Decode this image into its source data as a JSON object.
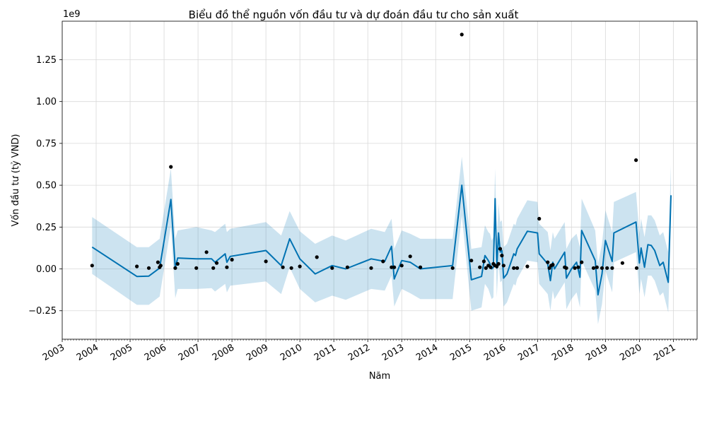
{
  "chart_data": {
    "type": "line",
    "title": "Biểu đồ thể nguồn vốn đầu tư và dự đoán đầu tư cho sản xuất",
    "xlabel": "Năm",
    "ylabel": "Vốn đầu tư (tỷ VND)",
    "offset_label": "1e9",
    "grid": true,
    "xlim": [
      2003.0,
      2021.7
    ],
    "ylim": [
      -0.42,
      1.48
    ],
    "x_ticks": [
      2003,
      2004,
      2005,
      2006,
      2007,
      2008,
      2009,
      2010,
      2011,
      2012,
      2013,
      2014,
      2015,
      2016,
      2017,
      2018,
      2019,
      2020,
      2021
    ],
    "x_tick_labels": [
      "2003",
      "2004",
      "2005",
      "2006",
      "2007",
      "2008",
      "2009",
      "2010",
      "2011",
      "2012",
      "2013",
      "2014",
      "2015",
      "2016",
      "2017",
      "2018",
      "2019",
      "2020",
      "2021"
    ],
    "y_ticks": [
      -0.25,
      0.0,
      0.25,
      0.5,
      0.75,
      1.0,
      1.25
    ],
    "y_tick_labels": [
      "−0.25",
      "0.00",
      "0.25",
      "0.50",
      "0.75",
      "1.00",
      "1.25"
    ],
    "colors": {
      "forecast": "#0072B2",
      "band": "#0072B2",
      "observed": "#000000",
      "grid": "#d9d9d9"
    },
    "series": [
      {
        "kind": "forecast",
        "x": [
          2003.88,
          2005.2,
          2005.55,
          2005.87,
          2006.2,
          2006.33,
          2006.4,
          2006.95,
          2007.4,
          2007.5,
          2007.8,
          2007.85,
          2007.95,
          2009.0,
          2009.45,
          2009.7,
          2010.0,
          2010.45,
          2010.95,
          2011.35,
          2012.1,
          2012.5,
          2012.7,
          2012.78,
          2013.0,
          2013.25,
          2013.55,
          2014.5,
          2014.77,
          2015.05,
          2015.35,
          2015.45,
          2015.55,
          2015.6,
          2015.65,
          2015.7,
          2015.75,
          2015.8,
          2015.85,
          2015.9,
          2015.95,
          2016.0,
          2016.1,
          2016.3,
          2016.35,
          2016.4,
          2016.7,
          2017.0,
          2017.05,
          2017.3,
          2017.38,
          2017.45,
          2017.5,
          2017.8,
          2017.85,
          2018.0,
          2018.15,
          2018.25,
          2018.3,
          2018.7,
          2018.78,
          2018.9,
          2019.0,
          2019.2,
          2019.25,
          2019.9,
          2020.0,
          2020.05,
          2020.15,
          2020.25,
          2020.35,
          2020.45,
          2020.6,
          2020.7,
          2020.85,
          2020.93
        ],
        "y": [
          0.13,
          -0.045,
          -0.043,
          0.005,
          0.415,
          0.005,
          0.065,
          0.06,
          0.06,
          0.04,
          0.09,
          0.04,
          0.075,
          0.11,
          0.02,
          0.18,
          0.06,
          -0.03,
          0.02,
          0.0,
          0.06,
          0.045,
          0.135,
          -0.06,
          0.05,
          0.04,
          0.0,
          0.02,
          0.5,
          -0.065,
          -0.045,
          0.08,
          0.05,
          0.03,
          0.0,
          0.01,
          0.42,
          0.005,
          0.215,
          0.1,
          0.11,
          -0.055,
          -0.03,
          0.09,
          0.08,
          0.12,
          0.225,
          0.215,
          0.09,
          0.03,
          -0.07,
          0.04,
          0.0,
          0.1,
          -0.055,
          0.0,
          0.04,
          -0.05,
          0.23,
          0.05,
          -0.155,
          -0.03,
          0.17,
          0.045,
          0.215,
          0.28,
          0.035,
          0.125,
          0.01,
          0.145,
          0.14,
          0.11,
          0.02,
          0.04,
          -0.08,
          0.44
        ],
        "y_lower": [
          -0.03,
          -0.215,
          -0.215,
          -0.165,
          0.255,
          -0.175,
          -0.12,
          -0.12,
          -0.115,
          -0.135,
          -0.09,
          -0.14,
          -0.1,
          -0.075,
          -0.15,
          0.01,
          -0.12,
          -0.2,
          -0.16,
          -0.185,
          -0.12,
          -0.13,
          -0.04,
          -0.225,
          -0.12,
          -0.145,
          -0.18,
          -0.18,
          0.32,
          -0.25,
          -0.23,
          -0.09,
          -0.12,
          -0.15,
          -0.18,
          -0.17,
          0.24,
          -0.17,
          0.04,
          -0.08,
          -0.07,
          -0.225,
          -0.2,
          -0.09,
          -0.1,
          -0.06,
          0.05,
          0.04,
          -0.09,
          -0.15,
          -0.25,
          -0.13,
          -0.18,
          -0.08,
          -0.24,
          -0.18,
          -0.14,
          -0.23,
          0.05,
          -0.13,
          -0.33,
          -0.21,
          -0.01,
          -0.14,
          0.04,
          0.1,
          -0.15,
          -0.06,
          -0.17,
          -0.04,
          -0.04,
          -0.07,
          -0.16,
          -0.14,
          -0.26,
          0.27
        ],
        "y_upper": [
          0.31,
          0.13,
          0.13,
          0.18,
          0.6,
          0.18,
          0.23,
          0.25,
          0.23,
          0.22,
          0.27,
          0.22,
          0.24,
          0.28,
          0.2,
          0.345,
          0.225,
          0.15,
          0.2,
          0.17,
          0.24,
          0.22,
          0.3,
          0.12,
          0.23,
          0.21,
          0.18,
          0.18,
          0.67,
          0.12,
          0.13,
          0.26,
          0.22,
          0.21,
          0.17,
          0.19,
          0.6,
          0.18,
          0.39,
          0.28,
          0.29,
          0.13,
          0.15,
          0.27,
          0.26,
          0.3,
          0.41,
          0.4,
          0.27,
          0.22,
          0.11,
          0.22,
          0.18,
          0.28,
          0.12,
          0.18,
          0.21,
          0.13,
          0.42,
          0.23,
          0.03,
          0.15,
          0.35,
          0.22,
          0.4,
          0.46,
          0.21,
          0.3,
          0.19,
          0.32,
          0.32,
          0.29,
          0.2,
          0.22,
          0.1,
          0.62
        ]
      },
      {
        "kind": "observed",
        "x": [
          2003.88,
          2005.2,
          2005.55,
          2005.82,
          2005.87,
          2005.9,
          2006.2,
          2006.33,
          2006.4,
          2006.95,
          2007.25,
          2007.45,
          2007.55,
          2007.85,
          2008.0,
          2009.0,
          2009.5,
          2009.75,
          2010.0,
          2010.5,
          2010.95,
          2011.4,
          2012.1,
          2012.45,
          2012.7,
          2012.78,
          2013.0,
          2013.25,
          2013.55,
          2014.5,
          2014.77,
          2015.05,
          2015.3,
          2015.42,
          2015.48,
          2015.55,
          2015.62,
          2015.7,
          2015.75,
          2015.8,
          2015.85,
          2015.9,
          2015.95,
          2016.0,
          2016.3,
          2016.4,
          2016.7,
          2017.05,
          2017.3,
          2017.35,
          2017.4,
          2017.45,
          2017.8,
          2017.85,
          2018.1,
          2018.2,
          2018.3,
          2018.65,
          2018.75,
          2018.9,
          2019.05,
          2019.2,
          2019.5,
          2019.9,
          2019.92
        ],
        "y": [
          0.02,
          0.015,
          0.005,
          0.04,
          0.01,
          0.02,
          0.61,
          0.005,
          0.03,
          0.005,
          0.1,
          0.005,
          0.035,
          0.01,
          0.055,
          0.045,
          0.01,
          0.005,
          0.015,
          0.07,
          0.005,
          0.01,
          0.005,
          0.045,
          0.01,
          0.01,
          0.02,
          0.075,
          0.01,
          0.005,
          1.4,
          0.05,
          0.01,
          0.045,
          0.005,
          0.02,
          0.01,
          0.03,
          0.02,
          0.015,
          0.03,
          0.12,
          0.08,
          0.02,
          0.005,
          0.005,
          0.015,
          0.3,
          0.04,
          0.005,
          0.02,
          0.025,
          0.01,
          0.005,
          0.005,
          0.01,
          0.04,
          0.005,
          0.01,
          0.005,
          0.005,
          0.005,
          0.035,
          0.65,
          0.005
        ]
      }
    ]
  }
}
